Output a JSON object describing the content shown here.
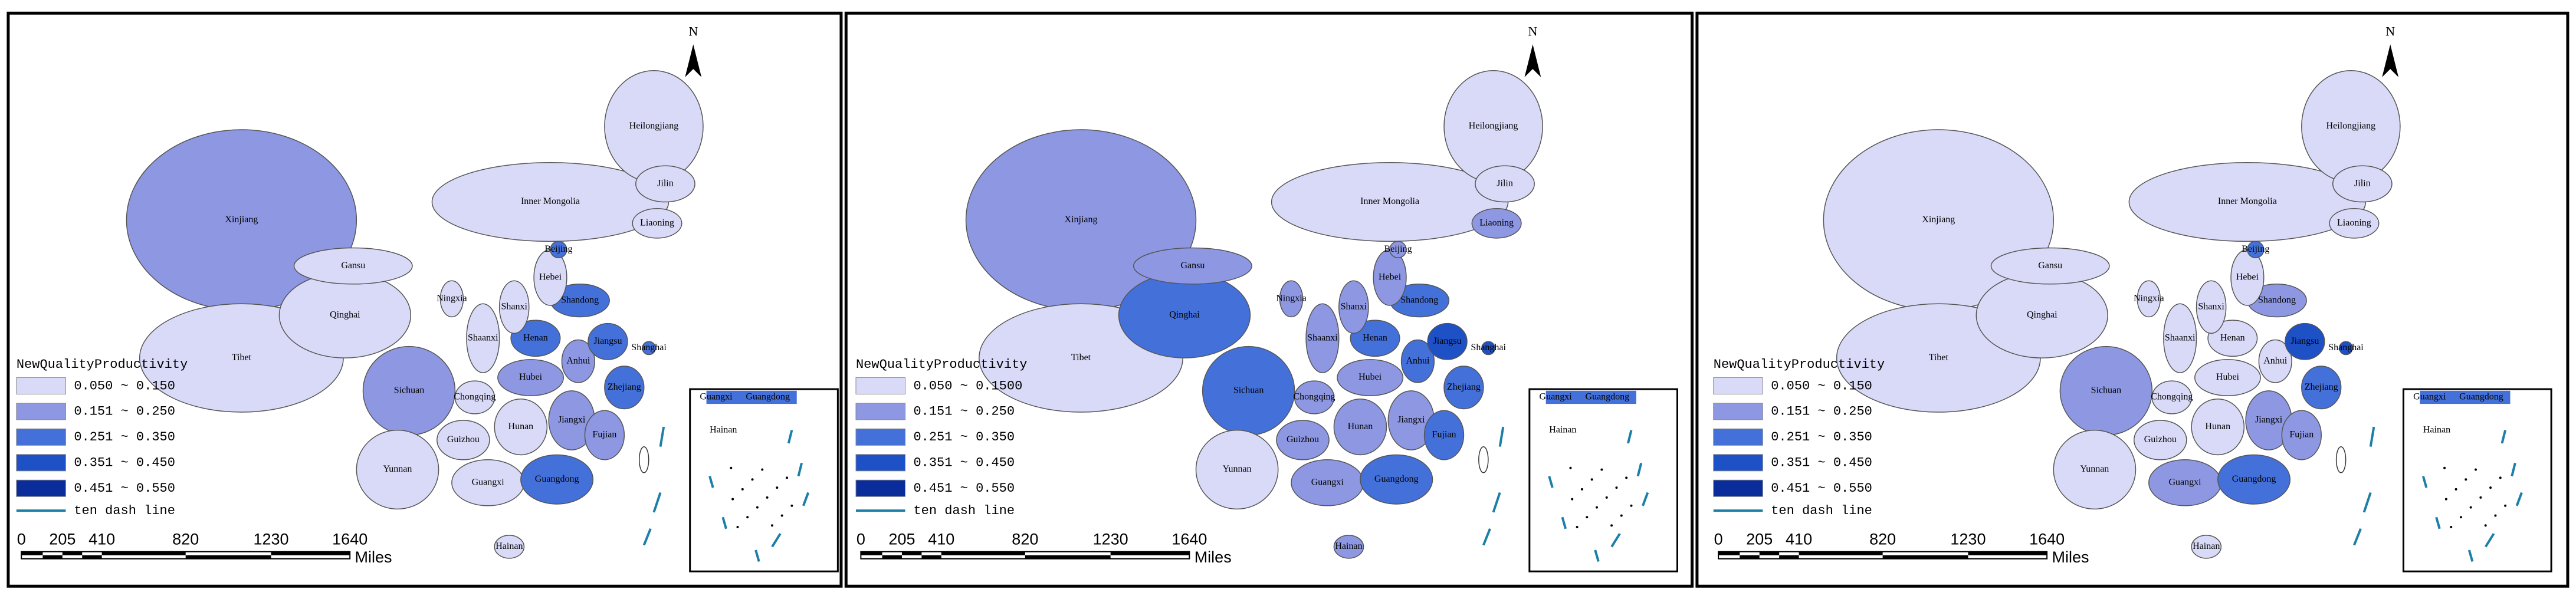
{
  "legend_colors": [
    "#d9daf7",
    "#8d97e2",
    "#4470d9",
    "#1e50c6",
    "#0b2d9c"
  ],
  "panels": [
    {
      "north": "N",
      "legend": {
        "title": "NewQualityProductivity",
        "items": [
          "0.050 ~ 0.150",
          "0.151 ~ 0.250",
          "0.251 ~ 0.350",
          "0.351 ~ 0.450",
          "0.451 ~ 0.550"
        ],
        "line": "ten dash line"
      },
      "scale": {
        "labels": [
          "0",
          "205",
          "410",
          "820",
          "1230",
          "1640"
        ],
        "unit": "Miles"
      },
      "inset_labels": [
        "Guangxi",
        "Guangdong",
        "Hainan"
      ],
      "provinces": [
        {
          "name": "Xinjiang",
          "class": 1
        },
        {
          "name": "Tibet",
          "class": 0
        },
        {
          "name": "Inner Mongolia",
          "class": 0
        },
        {
          "name": "Qinghai",
          "class": 0
        },
        {
          "name": "Heilongjiang",
          "class": 0
        },
        {
          "name": "Gansu",
          "class": 0
        },
        {
          "name": "Sichuan",
          "class": 1
        },
        {
          "name": "Yunnan",
          "class": 0
        },
        {
          "name": "Jilin",
          "class": 0
        },
        {
          "name": "Liaoning",
          "class": 0
        },
        {
          "name": "Guangxi",
          "class": 0
        },
        {
          "name": "Guangdong",
          "class": 2
        },
        {
          "name": "Hunan",
          "class": 0
        },
        {
          "name": "Jiangxi",
          "class": 1
        },
        {
          "name": "Hubei",
          "class": 1
        },
        {
          "name": "Henan",
          "class": 2
        },
        {
          "name": "Shaanxi",
          "class": 0
        },
        {
          "name": "Guizhou",
          "class": 0
        },
        {
          "name": "Fujian",
          "class": 1
        },
        {
          "name": "Zhejiang",
          "class": 2
        },
        {
          "name": "Anhui",
          "class": 1
        },
        {
          "name": "Jiangsu",
          "class": 2
        },
        {
          "name": "Shandong",
          "class": 2
        },
        {
          "name": "Hebei",
          "class": 0
        },
        {
          "name": "Shanxi",
          "class": 0
        },
        {
          "name": "Chongqing",
          "class": 0
        },
        {
          "name": "Ningxia",
          "class": 0
        },
        {
          "name": "Beijing",
          "class": 2
        },
        {
          "name": "Shanghai",
          "class": 2
        },
        {
          "name": "Hainan",
          "class": 0
        }
      ]
    },
    {
      "north": "N",
      "legend": {
        "title": "NewQualityProductivity",
        "items": [
          "0.050 ~ 0.1500",
          "0.151 ~ 0.250",
          "0.251 ~ 0.350",
          "0.351 ~ 0.450",
          "0.451 ~ 0.550"
        ],
        "line": "ten dash line"
      },
      "scale": {
        "labels": [
          "0",
          "205",
          "410",
          "820",
          "1230",
          "1640"
        ],
        "unit": "Miles"
      },
      "inset_labels": [
        "Guangxi",
        "Guangdong",
        "Hainan"
      ],
      "provinces": [
        {
          "name": "Xinjiang",
          "class": 1
        },
        {
          "name": "Tibet",
          "class": 0
        },
        {
          "name": "Inner Mongolia",
          "class": 0
        },
        {
          "name": "Qinghai",
          "class": 2
        },
        {
          "name": "Heilongjiang",
          "class": 0
        },
        {
          "name": "Gansu",
          "class": 1
        },
        {
          "name": "Sichuan",
          "class": 2
        },
        {
          "name": "Yunnan",
          "class": 0
        },
        {
          "name": "Jilin",
          "class": 0
        },
        {
          "name": "Liaoning",
          "class": 1
        },
        {
          "name": "Guangxi",
          "class": 1
        },
        {
          "name": "Guangdong",
          "class": 2
        },
        {
          "name": "Hunan",
          "class": 1
        },
        {
          "name": "Jiangxi",
          "class": 1
        },
        {
          "name": "Hubei",
          "class": 1
        },
        {
          "name": "Henan",
          "class": 2
        },
        {
          "name": "Shaanxi",
          "class": 1
        },
        {
          "name": "Guizhou",
          "class": 1
        },
        {
          "name": "Fujian",
          "class": 2
        },
        {
          "name": "Zhejiang",
          "class": 2
        },
        {
          "name": "Anhui",
          "class": 2
        },
        {
          "name": "Jiangsu",
          "class": 3
        },
        {
          "name": "Shandong",
          "class": 2
        },
        {
          "name": "Hebei",
          "class": 1
        },
        {
          "name": "Shanxi",
          "class": 1
        },
        {
          "name": "Chongqing",
          "class": 1
        },
        {
          "name": "Ningxia",
          "class": 1
        },
        {
          "name": "Beijing",
          "class": 1
        },
        {
          "name": "Shanghai",
          "class": 3
        },
        {
          "name": "Hainan",
          "class": 1
        }
      ]
    },
    {
      "north": "N",
      "legend": {
        "title": "NewQualityProductivity",
        "items": [
          "0.050 ~ 0.150",
          "0.151 ~ 0.250",
          "0.251 ~ 0.350",
          "0.351 ~ 0.450",
          "0.451 ~ 0.550"
        ],
        "line": "ten dash line"
      },
      "scale": {
        "labels": [
          "0",
          "205",
          "410",
          "820",
          "1230",
          "1640"
        ],
        "unit": "Miles"
      },
      "inset_labels": [
        "Guangxi",
        "Guangdong",
        "Hainan"
      ],
      "provinces": [
        {
          "name": "Xinjiang",
          "class": 0
        },
        {
          "name": "Tibet",
          "class": 0
        },
        {
          "name": "Inner Mongolia",
          "class": 0
        },
        {
          "name": "Qinghai",
          "class": 0
        },
        {
          "name": "Heilongjiang",
          "class": 0
        },
        {
          "name": "Gansu",
          "class": 0
        },
        {
          "name": "Sichuan",
          "class": 1
        },
        {
          "name": "Yunnan",
          "class": 0
        },
        {
          "name": "Jilin",
          "class": 0
        },
        {
          "name": "Liaoning",
          "class": 0
        },
        {
          "name": "Guangxi",
          "class": 1
        },
        {
          "name": "Guangdong",
          "class": 2
        },
        {
          "name": "Hunan",
          "class": 0
        },
        {
          "name": "Jiangxi",
          "class": 1
        },
        {
          "name": "Hubei",
          "class": 0
        },
        {
          "name": "Henan",
          "class": 0
        },
        {
          "name": "Shaanxi",
          "class": 0
        },
        {
          "name": "Guizhou",
          "class": 0
        },
        {
          "name": "Fujian",
          "class": 1
        },
        {
          "name": "Zhejiang",
          "class": 2
        },
        {
          "name": "Anhui",
          "class": 0
        },
        {
          "name": "Jiangsu",
          "class": 3
        },
        {
          "name": "Shandong",
          "class": 1
        },
        {
          "name": "Hebei",
          "class": 0
        },
        {
          "name": "Shanxi",
          "class": 0
        },
        {
          "name": "Chongqing",
          "class": 0
        },
        {
          "name": "Ningxia",
          "class": 0
        },
        {
          "name": "Beijing",
          "class": 2
        },
        {
          "name": "Shanghai",
          "class": 3
        },
        {
          "name": "Hainan",
          "class": 0
        }
      ]
    }
  ]
}
